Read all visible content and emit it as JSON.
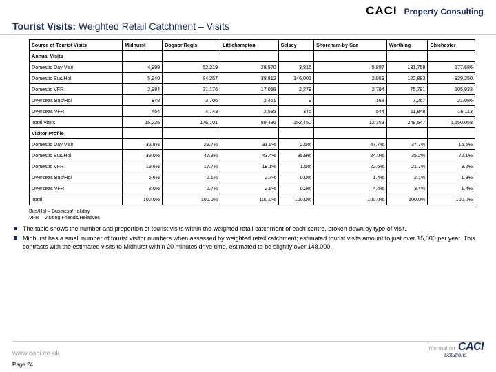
{
  "header": {
    "brand": "CACI",
    "subtitle": "Property Consulting"
  },
  "title": {
    "bold": "Tourist Visits:",
    "rest": " Weighted Retail Catchment – Visits"
  },
  "table": {
    "columns": [
      "Source of Tourist Visits",
      "Midhurst",
      "Bognor Regis",
      "Littlehampton",
      "Selsey",
      "Shoreham-by-Sea",
      "Worthing",
      "Chichester"
    ],
    "section1": "Annual Visits",
    "rows1": [
      [
        "Domestic Day Visit",
        "4,999",
        "52,219",
        "28,570",
        "3,816",
        "5,887",
        "131,759",
        "177,686"
      ],
      [
        "Domestic Bus/Hol",
        "5,940",
        "84,257",
        "38,812",
        "146,001",
        "2,959",
        "122,883",
        "829,250"
      ],
      [
        "Domestic VFR",
        "2,984",
        "31,176",
        "17,058",
        "2,278",
        "2,794",
        "75,791",
        "105,923"
      ],
      [
        "Overseas Bus/Hol",
        "848",
        "3,706",
        "2,451",
        "9",
        "168",
        "7,267",
        "21,086"
      ],
      [
        "Overseas VFR",
        "454",
        "4,743",
        "2,595",
        "346",
        "544",
        "11,848",
        "16,113"
      ],
      [
        "Total Visits",
        "15,225",
        "176,101",
        "89,486",
        "152,450",
        "12,353",
        "349,547",
        "1,150,058"
      ]
    ],
    "section2": "Visitor Profile",
    "rows2": [
      [
        "Domestic Day Visit",
        "32.8%",
        "29.7%",
        "31.9%",
        "2.5%",
        "47.7%",
        "37.7%",
        "15.5%"
      ],
      [
        "Domestic Bus/Hol",
        "39.0%",
        "47.8%",
        "43.4%",
        "95.8%",
        "24.0%",
        "35.2%",
        "72.1%"
      ],
      [
        "Domestic VFR",
        "19.6%",
        "17.7%",
        "19.1%",
        "1.5%",
        "22.6%",
        "21.7%",
        "9.2%"
      ],
      [
        "Overseas Bus/Hol",
        "5.6%",
        "2.1%",
        "2.7%",
        "0.0%",
        "1.4%",
        "2.1%",
        "1.8%"
      ],
      [
        "Overseas VFR",
        "3.0%",
        "2.7%",
        "2.9%",
        "0.2%",
        "4.4%",
        "3.4%",
        "1.4%"
      ],
      [
        "Total",
        "100.0%",
        "100.0%",
        "100.0%",
        "100.0%",
        "100.0%",
        "100.0%",
        "100.0%"
      ]
    ]
  },
  "footnote": "Bus/Hol – Business/Holiday\nVFR – Visiting Friends/Relatives",
  "bullets": [
    "The table shows the number and proportion of tourist visits within the weighted retail catchment of each centre, broken down by type of visit.",
    "Midhurst has a small number of tourist visitor numbers when assessed by weighted retail catchment; estimated tourist visits amount to just over 15,000 per year. This contrasts with the estimated visits to Midhurst within 20 minutes drive time, estimated to be slightly over 148,000."
  ],
  "footer": {
    "url": "www.caci.co.uk",
    "page": "Page 24",
    "logo_big": "CACI",
    "logo_small": "Solutions",
    "logo_tag": "Information"
  }
}
